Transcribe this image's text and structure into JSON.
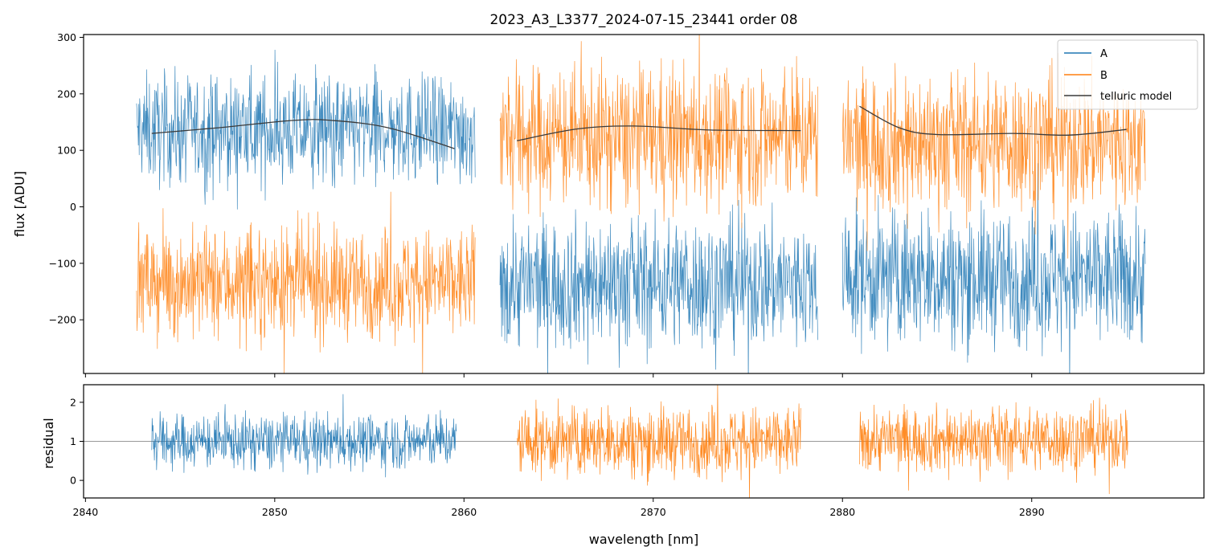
{
  "colors": {
    "A": "#1f77b4",
    "B": "#ff7f0e",
    "model": "#3a3a3a",
    "frame": "#000000",
    "baseline": "#777777"
  },
  "chart_data": [
    {
      "type": "line",
      "title": "2023_A3_L3377_2024-07-15_23441  order 08",
      "xlabel": "",
      "ylabel": "flux [ADU]",
      "xlim": [
        2839.9,
        2899.1
      ],
      "ylim": [
        -295,
        305
      ],
      "yticks": [
        -200,
        -100,
        0,
        100,
        200,
        300
      ],
      "xticks": [
        2840,
        2850,
        2860,
        2870,
        2880,
        2890
      ],
      "legend": {
        "position": "top-right",
        "entries": [
          "A",
          "B",
          "telluric model"
        ]
      },
      "segments": [
        {
          "xmin": 2842.7,
          "xmax": 2860.6,
          "A_mean": 135,
          "A_noise": 48,
          "B_mean": -135,
          "B_noise": 48
        },
        {
          "xmin": 2861.9,
          "xmax": 2878.7,
          "A_mean": -135,
          "A_noise": 58,
          "B_mean": 125,
          "B_noise": 62
        },
        {
          "xmin": 2880.0,
          "xmax": 2896.0,
          "A_mean": -125,
          "A_noise": 60,
          "B_mean": 115,
          "B_noise": 62
        }
      ],
      "series": [
        {
          "name": "A",
          "note_color": "A"
        },
        {
          "name": "B",
          "note_color": "B"
        },
        {
          "name": "telluric model",
          "pieces": [
            {
              "x": [
                2843.5,
                2847,
                2851,
                2853,
                2856,
                2859.5
              ],
              "y": [
                130,
                140,
                153,
                153,
                140,
                103
              ]
            },
            {
              "x": [
                2862.8,
                2866,
                2869,
                2873,
                2877.8
              ],
              "y": [
                117,
                138,
                143,
                136,
                135
              ]
            },
            {
              "x": [
                2880.9,
                2883,
                2885,
                2889,
                2892,
                2895
              ],
              "y": [
                178,
                140,
                128,
                130,
                127,
                137
              ]
            }
          ]
        }
      ]
    },
    {
      "type": "line",
      "xlabel": "wavelength [nm]",
      "ylabel": "residual",
      "xlim": [
        2839.9,
        2899.1
      ],
      "ylim": [
        -0.45,
        2.45
      ],
      "yticks": [
        0,
        1,
        2
      ],
      "xticks": [
        2840,
        2850,
        2860,
        2870,
        2880,
        2890
      ],
      "baseline": 1,
      "segments": [
        {
          "xmin": 2843.5,
          "xmax": 2859.6,
          "series": "A",
          "mean": 1.0,
          "noise": 0.35
        },
        {
          "xmin": 2862.8,
          "xmax": 2877.8,
          "series": "B",
          "mean": 1.0,
          "noise": 0.45
        },
        {
          "xmin": 2880.9,
          "xmax": 2895.1,
          "series": "B",
          "mean": 1.05,
          "noise": 0.42
        }
      ]
    }
  ]
}
